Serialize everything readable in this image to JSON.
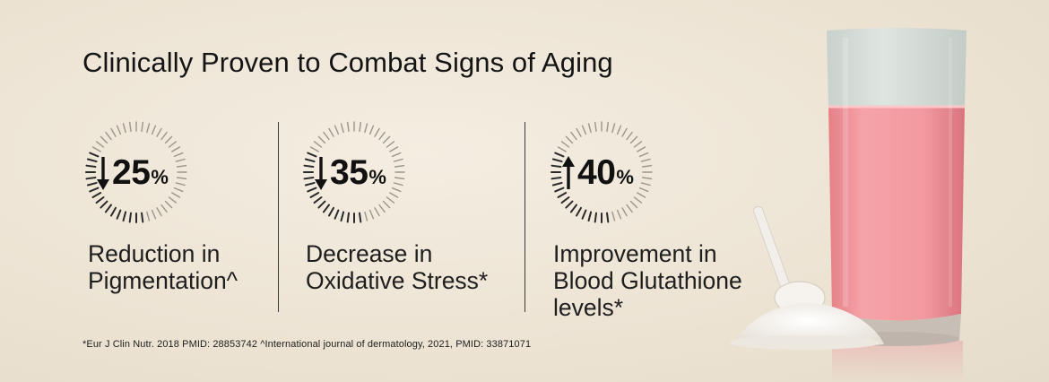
{
  "title": "Clinically Proven to Combat Signs of Aging",
  "stats": [
    {
      "direction": "down",
      "arrow_icon": "arrow-down-icon",
      "value": "25",
      "unit": "%",
      "label": "Reduction in\nPigmentation^"
    },
    {
      "direction": "down",
      "arrow_icon": "arrow-down-icon",
      "value": "35",
      "unit": "%",
      "label": "Decrease in\nOxidative Stress*"
    },
    {
      "direction": "up",
      "arrow_icon": "arrow-up-icon",
      "value": "40",
      "unit": "%",
      "label": "Improvement in\nBlood Glutathione\nlevels*"
    }
  ],
  "footnote": "*Eur J Clin Nutr. 2018 PMID: 28853742  ^International journal of dermatology, 2021, PMID: 33871071",
  "colors": {
    "background": "#ece3d3",
    "text": "#141414",
    "drink": "#f08f96",
    "glass_top": "#d6ddd8",
    "powder": "#f4f1ec"
  },
  "images": {
    "product": "glass of pink drink with scoop of white powder"
  }
}
